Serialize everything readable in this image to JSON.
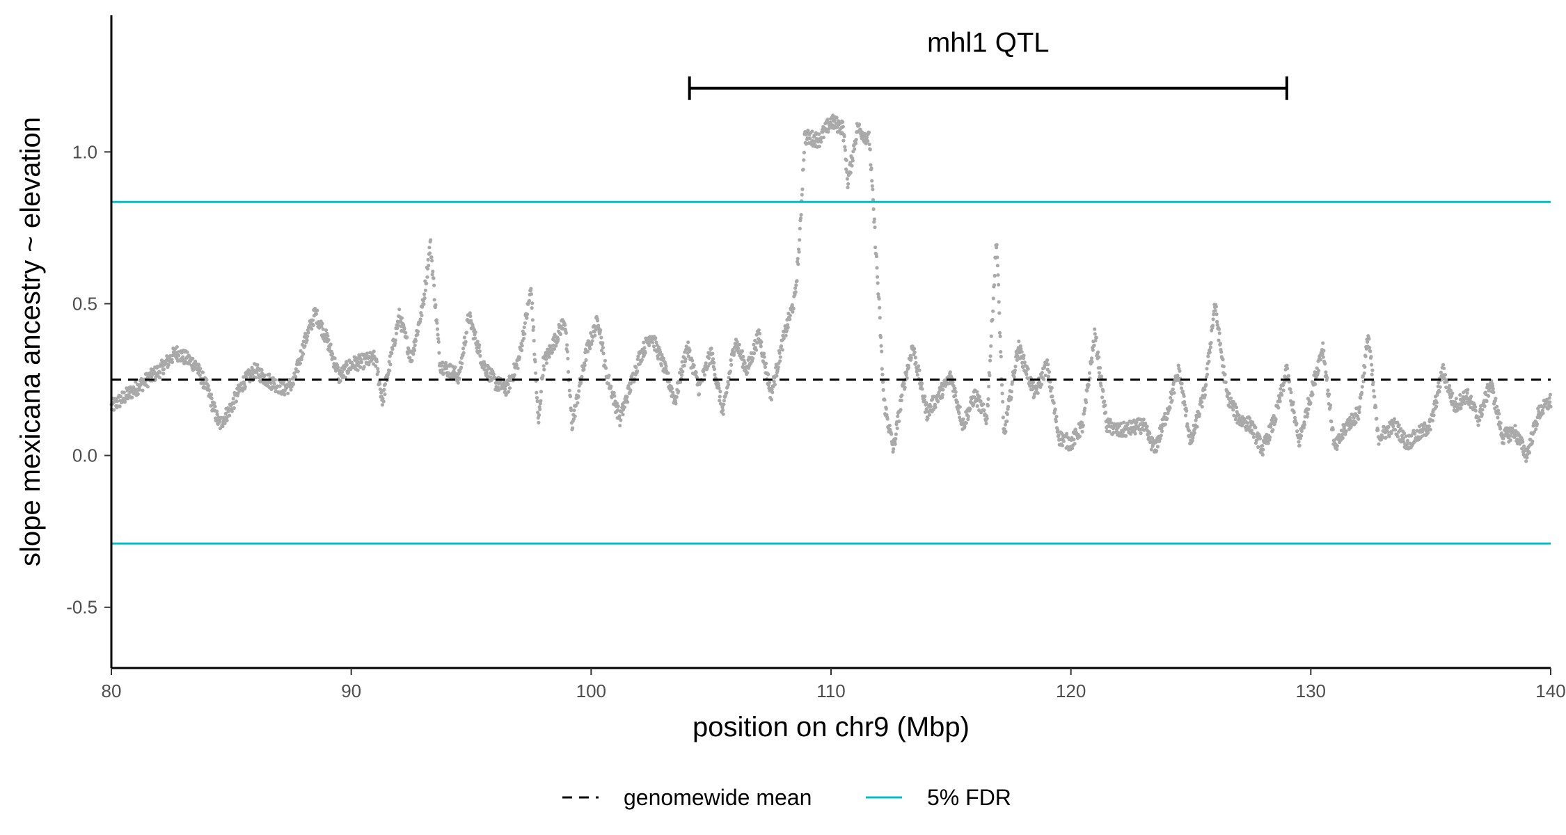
{
  "chart_data": {
    "type": "scatter",
    "xlabel": "position on chr9 (Mbp)",
    "ylabel": "slope mexicana ancestry ~ elevation",
    "xlim": [
      80,
      140
    ],
    "ylim": [
      -0.7,
      1.45
    ],
    "x_ticks": [
      80,
      90,
      100,
      110,
      120,
      130,
      140
    ],
    "x_tick_labels": [
      "80",
      "90",
      "100",
      "110",
      "120",
      "130",
      "140"
    ],
    "y_ticks": [
      -0.5,
      0.0,
      0.5,
      1.0
    ],
    "y_tick_labels": [
      "-0.5",
      "0.0",
      "0.5",
      "1.0"
    ],
    "grid": false,
    "legend_position": "bottom",
    "point_color": "#a9a9a9",
    "series": [
      {
        "name": "slope",
        "kind": "points",
        "profile": [
          [
            80.0,
            0.16
          ],
          [
            81.0,
            0.22
          ],
          [
            82.0,
            0.28
          ],
          [
            82.7,
            0.34
          ],
          [
            83.5,
            0.3
          ],
          [
            84.0,
            0.22
          ],
          [
            84.5,
            0.1
          ],
          [
            85.0,
            0.16
          ],
          [
            85.5,
            0.24
          ],
          [
            86.0,
            0.28
          ],
          [
            86.5,
            0.25
          ],
          [
            87.2,
            0.22
          ],
          [
            87.6,
            0.24
          ],
          [
            88.0,
            0.36
          ],
          [
            88.5,
            0.47
          ],
          [
            89.0,
            0.38
          ],
          [
            89.5,
            0.26
          ],
          [
            90.0,
            0.3
          ],
          [
            91.0,
            0.32
          ],
          [
            91.3,
            0.18
          ],
          [
            92.0,
            0.46
          ],
          [
            92.5,
            0.32
          ],
          [
            93.0,
            0.5
          ],
          [
            93.3,
            0.7
          ],
          [
            93.7,
            0.3
          ],
          [
            94.5,
            0.26
          ],
          [
            94.9,
            0.46
          ],
          [
            95.5,
            0.3
          ],
          [
            96.0,
            0.24
          ],
          [
            96.5,
            0.22
          ],
          [
            97.0,
            0.32
          ],
          [
            97.5,
            0.55
          ],
          [
            97.8,
            0.1
          ],
          [
            98.0,
            0.3
          ],
          [
            98.5,
            0.38
          ],
          [
            98.9,
            0.45
          ],
          [
            99.2,
            0.1
          ],
          [
            99.8,
            0.34
          ],
          [
            100.3,
            0.45
          ],
          [
            100.6,
            0.28
          ],
          [
            101.2,
            0.12
          ],
          [
            102.0,
            0.32
          ],
          [
            102.5,
            0.4
          ],
          [
            103.0,
            0.3
          ],
          [
            103.5,
            0.18
          ],
          [
            104.0,
            0.36
          ],
          [
            104.5,
            0.22
          ],
          [
            105.0,
            0.34
          ],
          [
            105.5,
            0.14
          ],
          [
            106.0,
            0.38
          ],
          [
            106.5,
            0.28
          ],
          [
            107.0,
            0.4
          ],
          [
            107.5,
            0.2
          ],
          [
            108.0,
            0.38
          ],
          [
            108.5,
            0.52
          ],
          [
            108.7,
            0.72
          ],
          [
            108.9,
            1.05
          ],
          [
            109.5,
            1.04
          ],
          [
            110.0,
            1.1
          ],
          [
            110.5,
            1.08
          ],
          [
            110.7,
            0.9
          ],
          [
            111.1,
            1.08
          ],
          [
            111.6,
            1.04
          ],
          [
            112.0,
            0.5
          ],
          [
            112.2,
            0.18
          ],
          [
            112.6,
            0.02
          ],
          [
            113.0,
            0.22
          ],
          [
            113.4,
            0.36
          ],
          [
            114.0,
            0.14
          ],
          [
            114.5,
            0.2
          ],
          [
            115.0,
            0.26
          ],
          [
            115.5,
            0.1
          ],
          [
            116.0,
            0.2
          ],
          [
            116.5,
            0.12
          ],
          [
            116.9,
            0.72
          ],
          [
            117.2,
            0.06
          ],
          [
            117.8,
            0.36
          ],
          [
            118.5,
            0.2
          ],
          [
            119.0,
            0.3
          ],
          [
            119.5,
            0.06
          ],
          [
            120.0,
            0.04
          ],
          [
            120.5,
            0.1
          ],
          [
            121.0,
            0.4
          ],
          [
            121.5,
            0.1
          ],
          [
            122.0,
            0.08
          ],
          [
            123.0,
            0.1
          ],
          [
            123.5,
            0.02
          ],
          [
            124.0,
            0.14
          ],
          [
            124.5,
            0.28
          ],
          [
            125.0,
            0.04
          ],
          [
            125.6,
            0.22
          ],
          [
            126.0,
            0.5
          ],
          [
            126.5,
            0.2
          ],
          [
            127.0,
            0.12
          ],
          [
            127.5,
            0.1
          ],
          [
            128.0,
            0.02
          ],
          [
            128.5,
            0.12
          ],
          [
            129.0,
            0.28
          ],
          [
            129.5,
            0.04
          ],
          [
            130.0,
            0.2
          ],
          [
            130.5,
            0.36
          ],
          [
            131.0,
            0.02
          ],
          [
            131.5,
            0.1
          ],
          [
            132.0,
            0.14
          ],
          [
            132.4,
            0.4
          ],
          [
            132.8,
            0.06
          ],
          [
            133.5,
            0.1
          ],
          [
            134.0,
            0.04
          ],
          [
            135.0,
            0.1
          ],
          [
            135.5,
            0.28
          ],
          [
            136.0,
            0.16
          ],
          [
            136.5,
            0.2
          ],
          [
            137.0,
            0.12
          ],
          [
            137.5,
            0.24
          ],
          [
            138.0,
            0.06
          ],
          [
            138.5,
            0.08
          ],
          [
            139.0,
            0.0
          ],
          [
            139.5,
            0.14
          ],
          [
            140.0,
            0.18
          ]
        ]
      },
      {
        "name": "genomewide mean",
        "kind": "hline",
        "y": 0.25,
        "style": "dashed",
        "color": "#000000"
      },
      {
        "name": "5% FDR",
        "kind": "hline",
        "y": [
          0.835,
          -0.29
        ],
        "style": "solid",
        "color": "#00bfc4"
      }
    ],
    "annotations": [
      {
        "label": "mhl1 QTL",
        "type": "interval",
        "x_start": 104.1,
        "x_end": 129.0,
        "y": 1.21
      }
    ],
    "legend": [
      {
        "label": "genomewide mean",
        "style": "dashed",
        "color": "#000000"
      },
      {
        "label": "5% FDR",
        "style": "solid",
        "color": "#00bfc4"
      }
    ]
  }
}
